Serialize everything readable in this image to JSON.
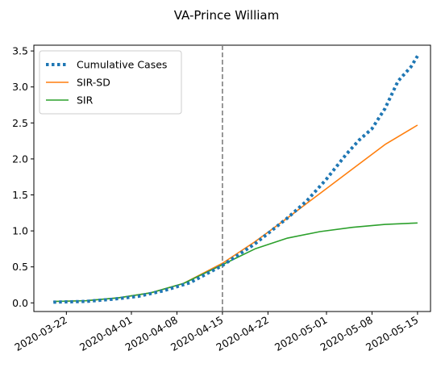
{
  "chart_data": {
    "type": "line",
    "title": "VA-Prince William",
    "xlabel": "",
    "ylabel": "",
    "x_ticks": [
      "2020-03-22",
      "2020-04-01",
      "2020-04-08",
      "2020-04-15",
      "2020-04-22",
      "2020-05-01",
      "2020-05-08",
      "2020-05-15"
    ],
    "y_ticks": [
      "0.0",
      "0.5",
      "1.0",
      "1.5",
      "2.0",
      "2.5",
      "3.0",
      "3.5"
    ],
    "xlim": [
      "2020-03-17",
      "2020-05-17"
    ],
    "ylim": [
      -0.12,
      3.58
    ],
    "vline": {
      "x": "2020-04-15",
      "style": "dashed",
      "color": "#7f7f7f"
    },
    "legend_position": "upper-left",
    "grid": false,
    "series": [
      {
        "name": "Cumulative Cases",
        "color": "#1f77b4",
        "style": "dotted",
        "points": [
          [
            "2020-03-20",
            0.01
          ],
          [
            "2020-03-25",
            0.02
          ],
          [
            "2020-03-29",
            0.05
          ],
          [
            "2020-04-02",
            0.09
          ],
          [
            "2020-04-06",
            0.17
          ],
          [
            "2020-04-10",
            0.28
          ],
          [
            "2020-04-15",
            0.52
          ],
          [
            "2020-04-20",
            0.82
          ],
          [
            "2020-04-25",
            1.18
          ],
          [
            "2020-04-28",
            1.42
          ],
          [
            "2020-05-01",
            1.72
          ],
          [
            "2020-05-04",
            2.06
          ],
          [
            "2020-05-06",
            2.26
          ],
          [
            "2020-05-08",
            2.42
          ],
          [
            "2020-05-10",
            2.7
          ],
          [
            "2020-05-12",
            3.08
          ],
          [
            "2020-05-14",
            3.28
          ],
          [
            "2020-05-15",
            3.43
          ]
        ]
      },
      {
        "name": "SIR-SD",
        "color": "#ff7f0e",
        "style": "solid",
        "points": [
          [
            "2020-03-20",
            0.02
          ],
          [
            "2020-03-25",
            0.03
          ],
          [
            "2020-03-30",
            0.07
          ],
          [
            "2020-04-04",
            0.14
          ],
          [
            "2020-04-09",
            0.27
          ],
          [
            "2020-04-15",
            0.55
          ],
          [
            "2020-04-20",
            0.85
          ],
          [
            "2020-04-25",
            1.18
          ],
          [
            "2020-04-30",
            1.52
          ],
          [
            "2020-05-05",
            1.86
          ],
          [
            "2020-05-10",
            2.2
          ],
          [
            "2020-05-15",
            2.47
          ]
        ]
      },
      {
        "name": "SIR",
        "color": "#2ca02c",
        "style": "solid",
        "points": [
          [
            "2020-03-20",
            0.02
          ],
          [
            "2020-03-25",
            0.03
          ],
          [
            "2020-03-30",
            0.07
          ],
          [
            "2020-04-04",
            0.14
          ],
          [
            "2020-04-09",
            0.27
          ],
          [
            "2020-04-15",
            0.53
          ],
          [
            "2020-04-20",
            0.75
          ],
          [
            "2020-04-25",
            0.9
          ],
          [
            "2020-04-30",
            0.99
          ],
          [
            "2020-05-05",
            1.05
          ],
          [
            "2020-05-10",
            1.09
          ],
          [
            "2020-05-15",
            1.11
          ]
        ]
      }
    ]
  }
}
